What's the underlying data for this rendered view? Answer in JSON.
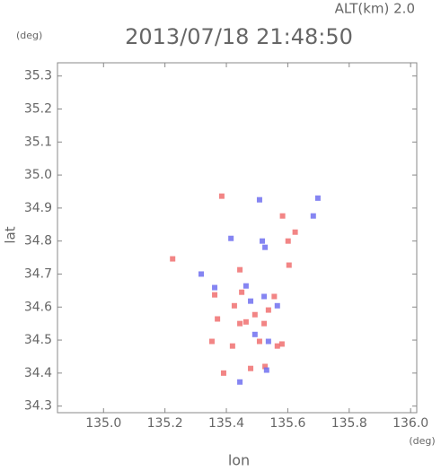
{
  "chart_data": {
    "type": "scatter",
    "title": "2013/07/18 21:48:50",
    "subtitle": "ALT(km) 2.0",
    "y_unit": "(deg)",
    "x_unit": "(deg)",
    "xlabel": "lon",
    "ylabel": "lat",
    "xlim": [
      134.85,
      136.02
    ],
    "ylim": [
      34.28,
      35.34
    ],
    "xticks": [
      {
        "value": 135,
        "label": "135.0"
      },
      135.2,
      135.4,
      135.6,
      135.8,
      {
        "value": 136,
        "label": "136.0"
      }
    ],
    "yticks": [
      34.3,
      34.4,
      34.5,
      34.6,
      34.7,
      34.8,
      34.9,
      {
        "value": 35,
        "label": "35.0"
      },
      35.1,
      35.2,
      35.3
    ],
    "series": [
      {
        "color": "#f07070",
        "x": [
          135.385,
          135.225,
          135.444,
          135.362,
          135.426,
          135.493,
          135.523,
          135.537,
          135.464,
          135.508,
          135.566,
          135.42,
          135.353,
          135.479,
          135.526,
          135.581,
          135.601,
          135.624,
          135.583,
          135.604,
          135.371,
          135.45,
          135.556,
          135.444,
          135.391
        ],
        "y": [
          34.936,
          34.746,
          34.713,
          34.637,
          34.604,
          34.577,
          34.55,
          34.591,
          34.555,
          34.496,
          34.482,
          34.482,
          34.496,
          34.414,
          34.42,
          34.488,
          34.8,
          34.827,
          34.876,
          34.727,
          34.564,
          34.645,
          34.632,
          34.55,
          34.4
        ]
      },
      {
        "color": "#7070f0",
        "x": [
          135.508,
          135.698,
          135.517,
          135.526,
          135.415,
          135.464,
          135.523,
          135.493,
          135.444,
          135.531,
          135.362,
          135.566,
          135.683,
          135.537,
          135.318,
          135.479
        ],
        "y": [
          34.925,
          34.93,
          34.8,
          34.781,
          34.808,
          34.664,
          34.632,
          34.517,
          34.373,
          34.409,
          34.659,
          34.604,
          34.876,
          34.496,
          34.7,
          34.618
        ]
      }
    ]
  }
}
